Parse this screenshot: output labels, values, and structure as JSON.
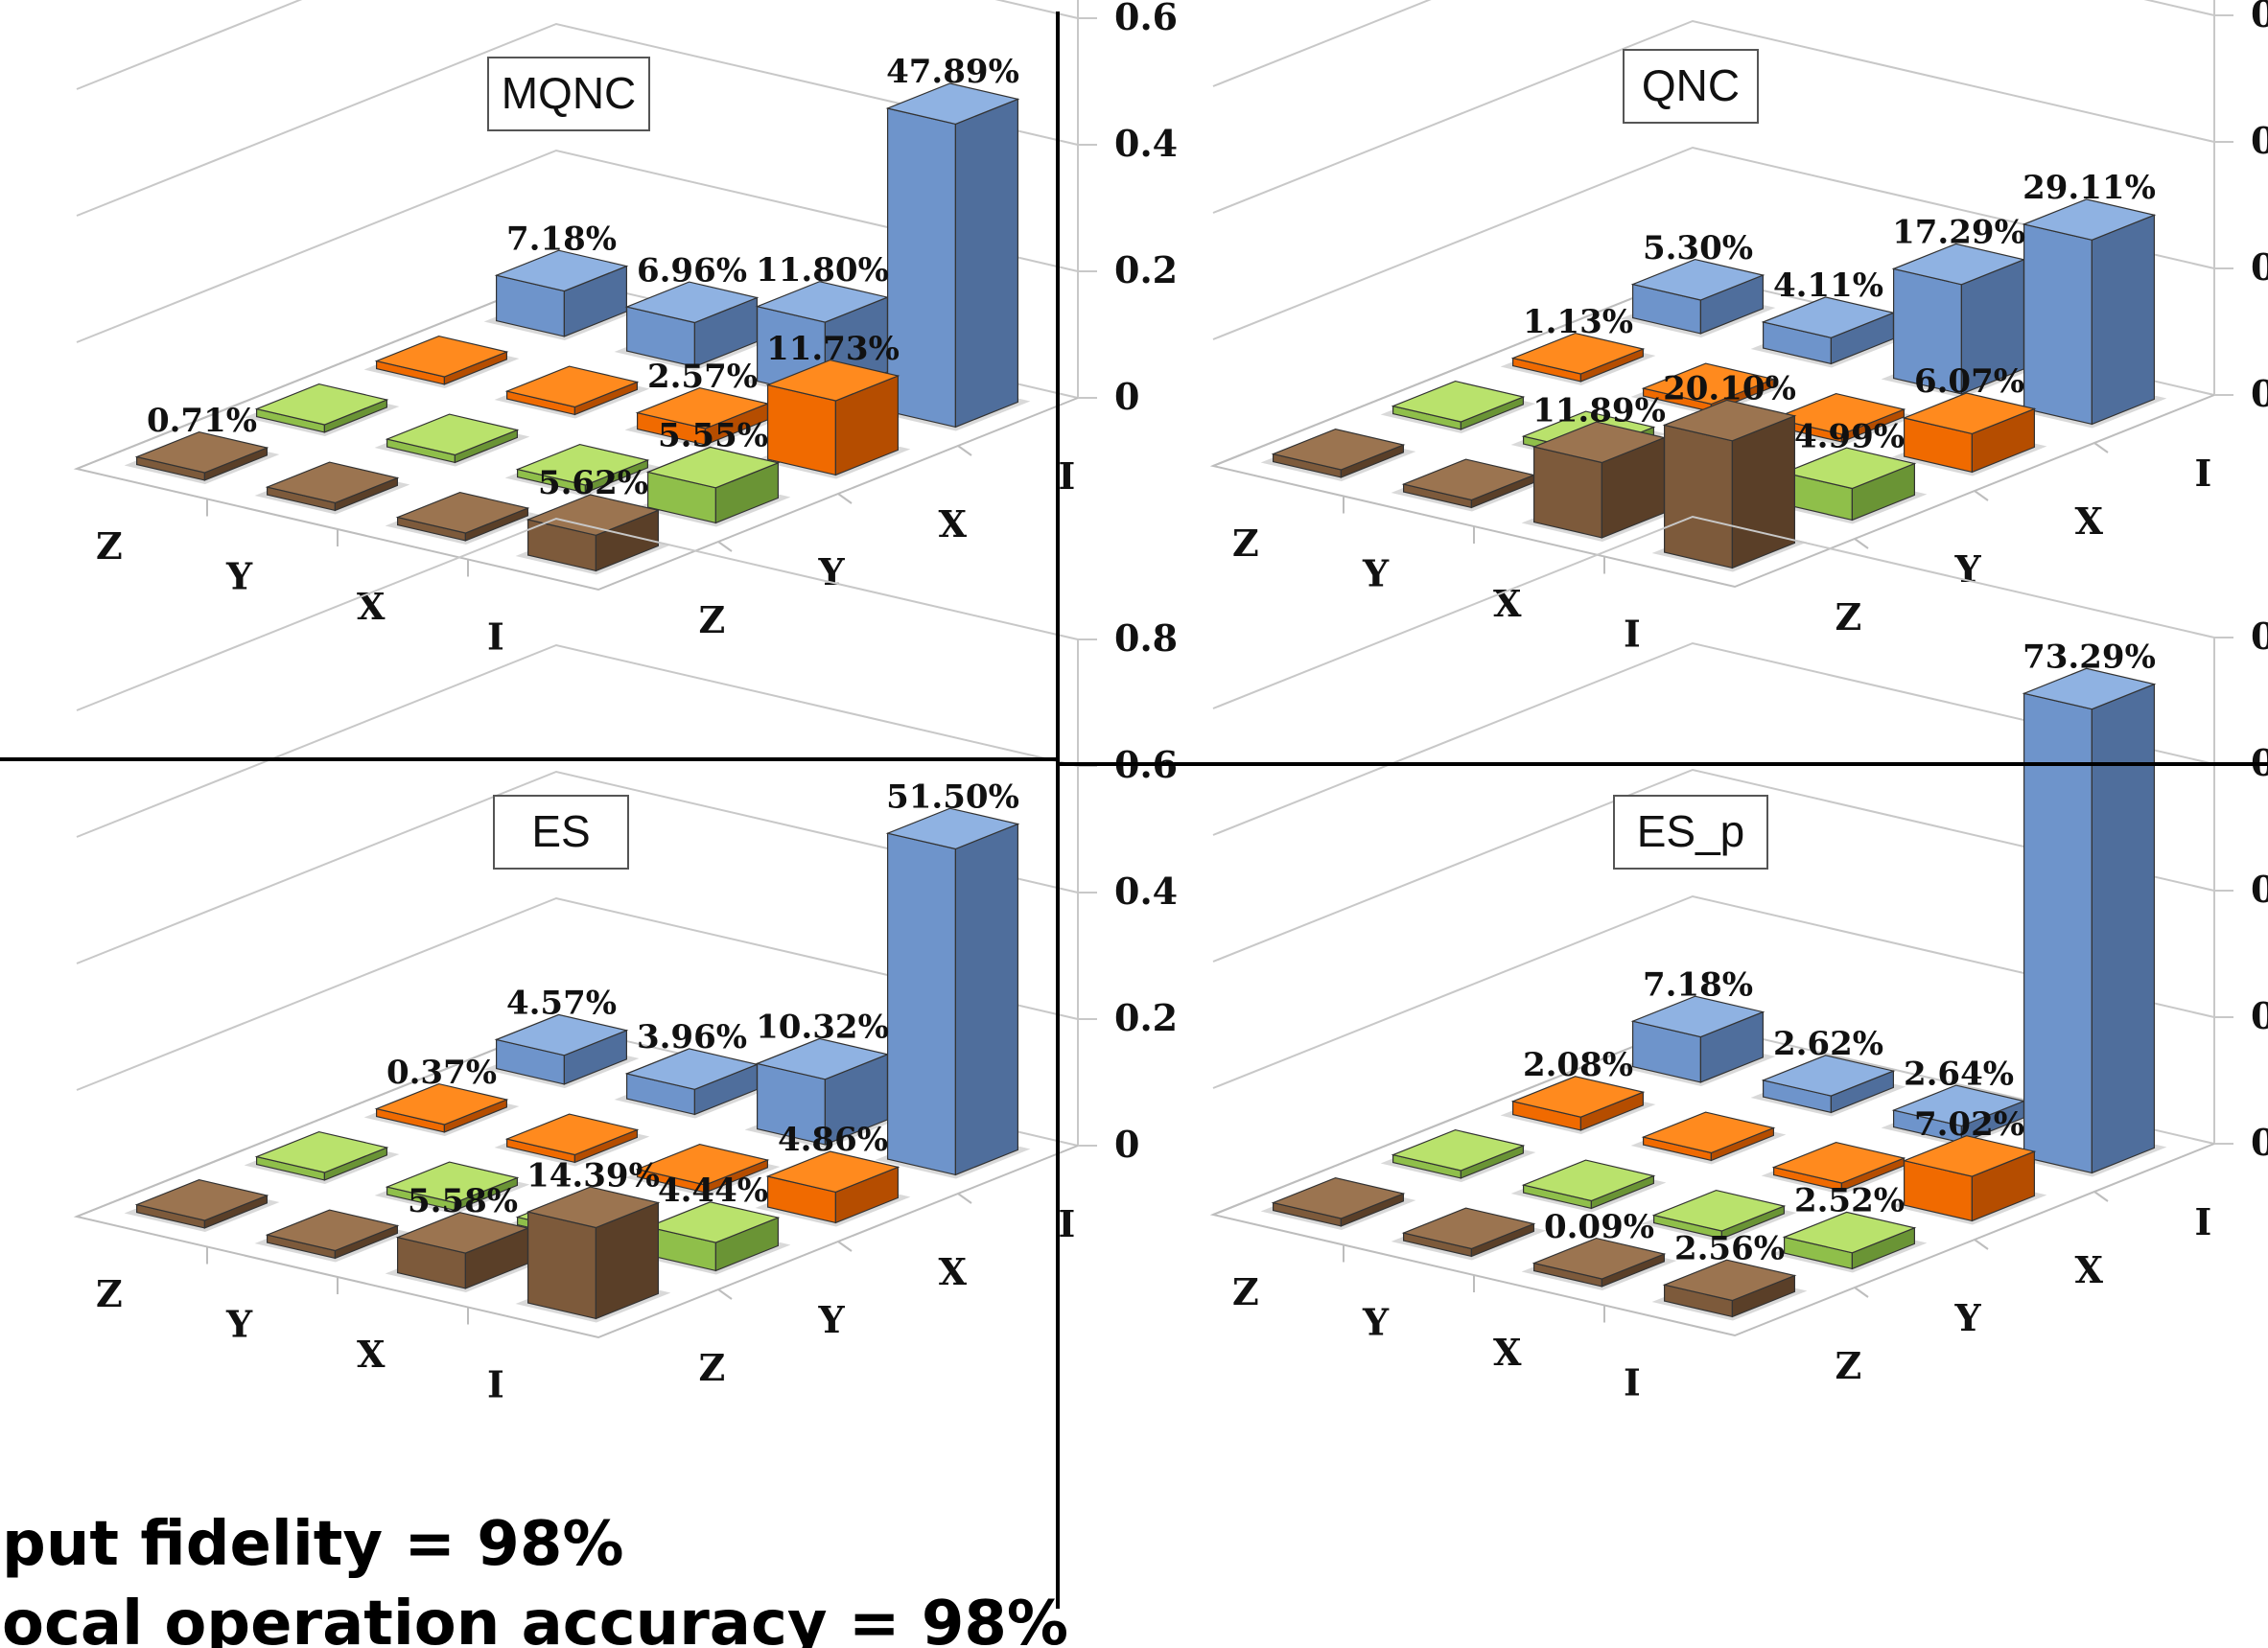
{
  "colors": {
    "I": {
      "top": "#8fb2e2",
      "front": "#6e94cb",
      "side": "#4f6e9c"
    },
    "X": {
      "top": "#ff8a1e",
      "front": "#f06a00",
      "side": "#b54d00"
    },
    "Y": {
      "top": "#b9e26c",
      "front": "#8fbf4a",
      "side": "#6a9435"
    },
    "Z": {
      "top": "#9b7450",
      "front": "#7d5a3b",
      "side": "#5a3f28"
    }
  },
  "yticks": [
    "0.8",
    "0.6",
    "0.4",
    "0.2",
    "0"
  ],
  "row_labels": [
    "Z",
    "Y",
    "X",
    "I"
  ],
  "col_labels": [
    "Z",
    "Y",
    "X",
    "I"
  ],
  "footer": {
    "line1": "put fidelity = 98%",
    "line2": "ocal operation accuracy = 98%"
  },
  "chart_data": [
    {
      "type": "bar",
      "title": "MQNC",
      "zlim": [
        0,
        0.8
      ],
      "cells": [
        {
          "row": "I",
          "col": "I",
          "value": 0.4789,
          "label": "47.89%"
        },
        {
          "row": "I",
          "col": "X",
          "value": 0.1173,
          "label": "11.73%"
        },
        {
          "row": "I",
          "col": "Y",
          "value": 0.0555,
          "label": "5.55%"
        },
        {
          "row": "I",
          "col": "Z",
          "value": 0.0562,
          "label": "5.62%"
        },
        {
          "row": "X",
          "col": "I",
          "value": 0.118,
          "label": "11.80%"
        },
        {
          "row": "X",
          "col": "X",
          "value": 0.0257,
          "label": "2.57%"
        },
        {
          "row": "X",
          "col": "Y",
          "value": 0.0,
          "label": ""
        },
        {
          "row": "X",
          "col": "Z",
          "value": 0.0,
          "label": ""
        },
        {
          "row": "Y",
          "col": "I",
          "value": 0.0696,
          "label": "6.96%"
        },
        {
          "row": "Y",
          "col": "X",
          "value": 0.0,
          "label": ""
        },
        {
          "row": "Y",
          "col": "Y",
          "value": 0.0,
          "label": ""
        },
        {
          "row": "Y",
          "col": "Z",
          "value": 0.0,
          "label": ""
        },
        {
          "row": "Z",
          "col": "I",
          "value": 0.0718,
          "label": "7.18%"
        },
        {
          "row": "Z",
          "col": "X",
          "value": 0.0,
          "label": ""
        },
        {
          "row": "Z",
          "col": "Y",
          "value": 0.0,
          "label": ""
        },
        {
          "row": "Z",
          "col": "Z",
          "value": 0.0071,
          "label": "0.71%"
        }
      ]
    },
    {
      "type": "bar",
      "title": "QNC",
      "zlim": [
        0,
        0.8
      ],
      "cells": [
        {
          "row": "I",
          "col": "I",
          "value": 0.2911,
          "label": "29.11%"
        },
        {
          "row": "I",
          "col": "X",
          "value": 0.0607,
          "label": "6.07%"
        },
        {
          "row": "I",
          "col": "Y",
          "value": 0.0499,
          "label": "4.99%"
        },
        {
          "row": "I",
          "col": "Z",
          "value": 0.201,
          "label": "20.10%"
        },
        {
          "row": "X",
          "col": "I",
          "value": 0.1729,
          "label": "17.29%"
        },
        {
          "row": "X",
          "col": "X",
          "value": 0.0,
          "label": ""
        },
        {
          "row": "X",
          "col": "Y",
          "value": 0.0,
          "label": ""
        },
        {
          "row": "X",
          "col": "Z",
          "value": 0.1189,
          "label": "11.89%"
        },
        {
          "row": "Y",
          "col": "I",
          "value": 0.0411,
          "label": "4.11%"
        },
        {
          "row": "Y",
          "col": "X",
          "value": 0.0,
          "label": ""
        },
        {
          "row": "Y",
          "col": "Y",
          "value": 0.0,
          "label": ""
        },
        {
          "row": "Y",
          "col": "Z",
          "value": 0.0,
          "label": ""
        },
        {
          "row": "Z",
          "col": "I",
          "value": 0.053,
          "label": "5.30%"
        },
        {
          "row": "Z",
          "col": "X",
          "value": 0.0113,
          "label": "1.13%"
        },
        {
          "row": "Z",
          "col": "Y",
          "value": 0.0,
          "label": ""
        },
        {
          "row": "Z",
          "col": "Z",
          "value": 0.0,
          "label": ""
        }
      ]
    },
    {
      "type": "bar",
      "title": "ES",
      "zlim": [
        0,
        0.8
      ],
      "cells": [
        {
          "row": "I",
          "col": "I",
          "value": 0.515,
          "label": "51.50%"
        },
        {
          "row": "I",
          "col": "X",
          "value": 0.0486,
          "label": "4.86%"
        },
        {
          "row": "I",
          "col": "Y",
          "value": 0.0444,
          "label": "4.44%"
        },
        {
          "row": "I",
          "col": "Z",
          "value": 0.1439,
          "label": "14.39%"
        },
        {
          "row": "X",
          "col": "I",
          "value": 0.1032,
          "label": "10.32%"
        },
        {
          "row": "X",
          "col": "X",
          "value": 0.0,
          "label": ""
        },
        {
          "row": "X",
          "col": "Y",
          "value": 0.0,
          "label": ""
        },
        {
          "row": "X",
          "col": "Z",
          "value": 0.0558,
          "label": "5.58%"
        },
        {
          "row": "Y",
          "col": "I",
          "value": 0.0396,
          "label": "3.96%"
        },
        {
          "row": "Y",
          "col": "X",
          "value": 0.0,
          "label": ""
        },
        {
          "row": "Y",
          "col": "Y",
          "value": 0.0,
          "label": ""
        },
        {
          "row": "Y",
          "col": "Z",
          "value": 0.0,
          "label": ""
        },
        {
          "row": "Z",
          "col": "I",
          "value": 0.0457,
          "label": "4.57%"
        },
        {
          "row": "Z",
          "col": "X",
          "value": 0.0037,
          "label": "0.37%"
        },
        {
          "row": "Z",
          "col": "Y",
          "value": 0.0,
          "label": ""
        },
        {
          "row": "Z",
          "col": "Z",
          "value": 0.0,
          "label": ""
        }
      ]
    },
    {
      "type": "bar",
      "title": "ES_p",
      "zlim": [
        0,
        0.8
      ],
      "cells": [
        {
          "row": "I",
          "col": "I",
          "value": 0.7329,
          "label": "73.29%"
        },
        {
          "row": "I",
          "col": "X",
          "value": 0.0702,
          "label": "7.02%"
        },
        {
          "row": "I",
          "col": "Y",
          "value": 0.0252,
          "label": "2.52%"
        },
        {
          "row": "I",
          "col": "Z",
          "value": 0.0256,
          "label": "2.56%"
        },
        {
          "row": "X",
          "col": "I",
          "value": 0.0264,
          "label": "2.64%"
        },
        {
          "row": "X",
          "col": "X",
          "value": 0.0,
          "label": ""
        },
        {
          "row": "X",
          "col": "Y",
          "value": 0.0,
          "label": ""
        },
        {
          "row": "X",
          "col": "Z",
          "value": 0.0009,
          "label": "0.09%"
        },
        {
          "row": "Y",
          "col": "I",
          "value": 0.0262,
          "label": "2.62%"
        },
        {
          "row": "Y",
          "col": "X",
          "value": 0.0,
          "label": ""
        },
        {
          "row": "Y",
          "col": "Y",
          "value": 0.0,
          "label": ""
        },
        {
          "row": "Y",
          "col": "Z",
          "value": 0.0,
          "label": ""
        },
        {
          "row": "Z",
          "col": "I",
          "value": 0.0718,
          "label": "7.18%"
        },
        {
          "row": "Z",
          "col": "X",
          "value": 0.0208,
          "label": "2.08%"
        },
        {
          "row": "Z",
          "col": "Y",
          "value": 0.0,
          "label": ""
        },
        {
          "row": "Z",
          "col": "Z",
          "value": 0.0,
          "label": ""
        }
      ]
    }
  ]
}
